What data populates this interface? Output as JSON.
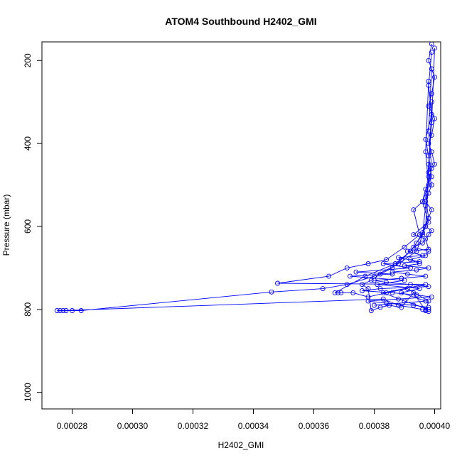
{
  "chart_data": {
    "type": "scatter",
    "title": "ATOM4 Southbound H2402_GMI",
    "xlabel": "H2402_GMI",
    "ylabel": "Pressure (mbar)",
    "xlim": [
      0.00027,
      0.000402
    ],
    "ylim": [
      1040,
      155
    ],
    "y_axis_inverted": true,
    "x_ticks": [
      "0.00028",
      "0.00030",
      "0.00032",
      "0.00034",
      "0.00036",
      "0.00038",
      "0.00040"
    ],
    "x_tick_values": [
      0.00028,
      0.0003,
      0.00032,
      0.00034,
      0.00036,
      0.00038,
      0.0004
    ],
    "y_ticks": [
      "200",
      "400",
      "600",
      "800",
      "1000"
    ],
    "y_tick_values": [
      200,
      400,
      600,
      800,
      1000
    ],
    "series_color": "#0000ff",
    "marker": "open-circle",
    "connected_with_lines": true,
    "legend": "none",
    "grid": false,
    "series": [
      {
        "x": [
          0.000399,
          0.000398,
          0.0004,
          0.000399,
          0.000398,
          0.0004,
          0.000399,
          0.000398,
          0.000399,
          0.0004,
          0.000398,
          0.000399,
          0.000398,
          0.000397,
          0.000399,
          0.000398,
          0.000397,
          0.000399,
          0.000398,
          0.000396,
          0.000393,
          0.000398,
          0.000397,
          0.000392,
          0.000395,
          0.00039,
          0.000398,
          0.000394,
          0.000386,
          0.000391,
          0.000397,
          0.000389,
          0.00038,
          0.000384,
          0.000392,
          0.000398,
          0.000382,
          0.000376,
          0.000386,
          0.000394,
          0.000399,
          0.000388,
          0.000378,
          0.000384,
          0.000393,
          0.000398,
          0.000397,
          0.000398
        ],
        "y": [
          160,
          200,
          240,
          280,
          310,
          340,
          380,
          400,
          420,
          450,
          470,
          500,
          520,
          540,
          560,
          580,
          600,
          610,
          620,
          640,
          650,
          660,
          670,
          680,
          690,
          695,
          700,
          705,
          710,
          715,
          720,
          725,
          730,
          735,
          740,
          745,
          750,
          755,
          760,
          765,
          770,
          775,
          780,
          785,
          790,
          795,
          800,
          805
        ]
      },
      {
        "x": [
          0.000399,
          0.000398,
          0.000399,
          0.000397,
          0.000398,
          0.000399,
          0.000397,
          0.000396,
          0.000398,
          0.000393,
          0.000397,
          0.000398,
          0.000391,
          0.000396,
          0.000388,
          0.000395,
          0.000383,
          0.000392,
          0.000374,
          0.000386,
          0.000372,
          0.00039,
          0.000381,
          0.000395,
          0.000389,
          0.000397,
          0.00038
        ],
        "y": [
          180,
          260,
          330,
          390,
          430,
          480,
          510,
          540,
          590,
          620,
          630,
          655,
          660,
          670,
          675,
          685,
          690,
          700,
          710,
          715,
          720,
          730,
          740,
          750,
          760,
          780,
          790
        ]
      },
      {
        "x": [
          0.000398,
          0.000397,
          0.000398,
          0.000396,
          0.000393,
          0.000395,
          0.00039,
          0.000384,
          0.000378,
          0.000371,
          0.000365,
          0.000348,
          0.000397,
          0.000383,
          0.00039,
          0.000398
        ],
        "y": [
          250,
          420,
          500,
          540,
          560,
          620,
          650,
          680,
          690,
          700,
          720,
          737,
          740,
          760,
          780,
          800
        ]
      },
      {
        "x": [
          0.000399,
          0.000398,
          0.000397,
          0.000394,
          0.000388,
          0.00038,
          0.000371,
          0.000363,
          0.000346,
          0.000283,
          0.00028,
          0.000278,
          0.000276,
          0.000275,
          0.000277,
          0.000383,
          0.000388,
          0.000396
        ],
        "y": [
          300,
          480,
          600,
          660,
          690,
          720,
          740,
          750,
          758,
          803,
          803,
          803,
          803,
          803,
          803,
          775,
          790,
          800
        ]
      },
      {
        "x": [
          0.0004,
          0.000399,
          0.000398,
          0.000397,
          0.000396,
          0.000392,
          0.000387,
          0.000377,
          0.000367,
          0.000368,
          0.000369,
          0.000373,
          0.000378,
          0.000384,
          0.000391,
          0.000398,
          0.000397
        ],
        "y": [
          170,
          350,
          450,
          550,
          620,
          660,
          690,
          720,
          760,
          760,
          760,
          760,
          770,
          760,
          750,
          780,
          803
        ]
      },
      {
        "x": [
          0.000399,
          0.000398,
          0.000399,
          0.000397,
          0.000398,
          0.000396,
          0.000394,
          0.000392,
          0.000389,
          0.000386,
          0.000382,
          0.000379,
          0.000376,
          0.000378,
          0.000379,
          0.000382,
          0.000385,
          0.000389,
          0.000393,
          0.000397
        ],
        "y": [
          220,
          370,
          460,
          530,
          580,
          615,
          640,
          660,
          680,
          700,
          715,
          730,
          740,
          750,
          803,
          795,
          790,
          795,
          760,
          803
        ]
      }
    ]
  }
}
